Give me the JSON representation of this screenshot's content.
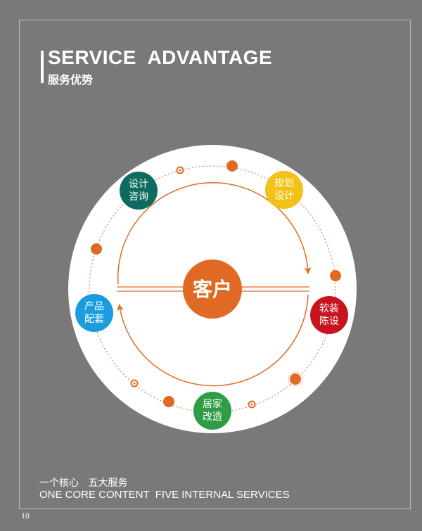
{
  "heading": {
    "en": "SERVICE  ADVANTAGE",
    "cn": "服务优势"
  },
  "center": {
    "label": "客户",
    "color": "#e06a24"
  },
  "services": [
    {
      "id": "design-consult",
      "line1": "设计",
      "line2": "咨询",
      "color": "#0f6b5f"
    },
    {
      "id": "planning-design",
      "line1": "规划",
      "line2": "设计",
      "color": "#f2c218"
    },
    {
      "id": "soft-decoration",
      "line1": "软装",
      "line2": "陈设",
      "color": "#c8141e"
    },
    {
      "id": "home-renovation",
      "line1": "居家",
      "line2": "改造",
      "color": "#2f9d45"
    },
    {
      "id": "product-package",
      "line1": "产品",
      "line2": "配套",
      "color": "#1a9cdf"
    }
  ],
  "footer": {
    "cn": "一个核心   五大服务",
    "en": "ONE CORE CONTENT  FIVE INTERNAL SERVICES",
    "page": "10"
  },
  "colors": {
    "background": "#797979",
    "accent": "#e06a24",
    "circle": "#ffffff"
  }
}
